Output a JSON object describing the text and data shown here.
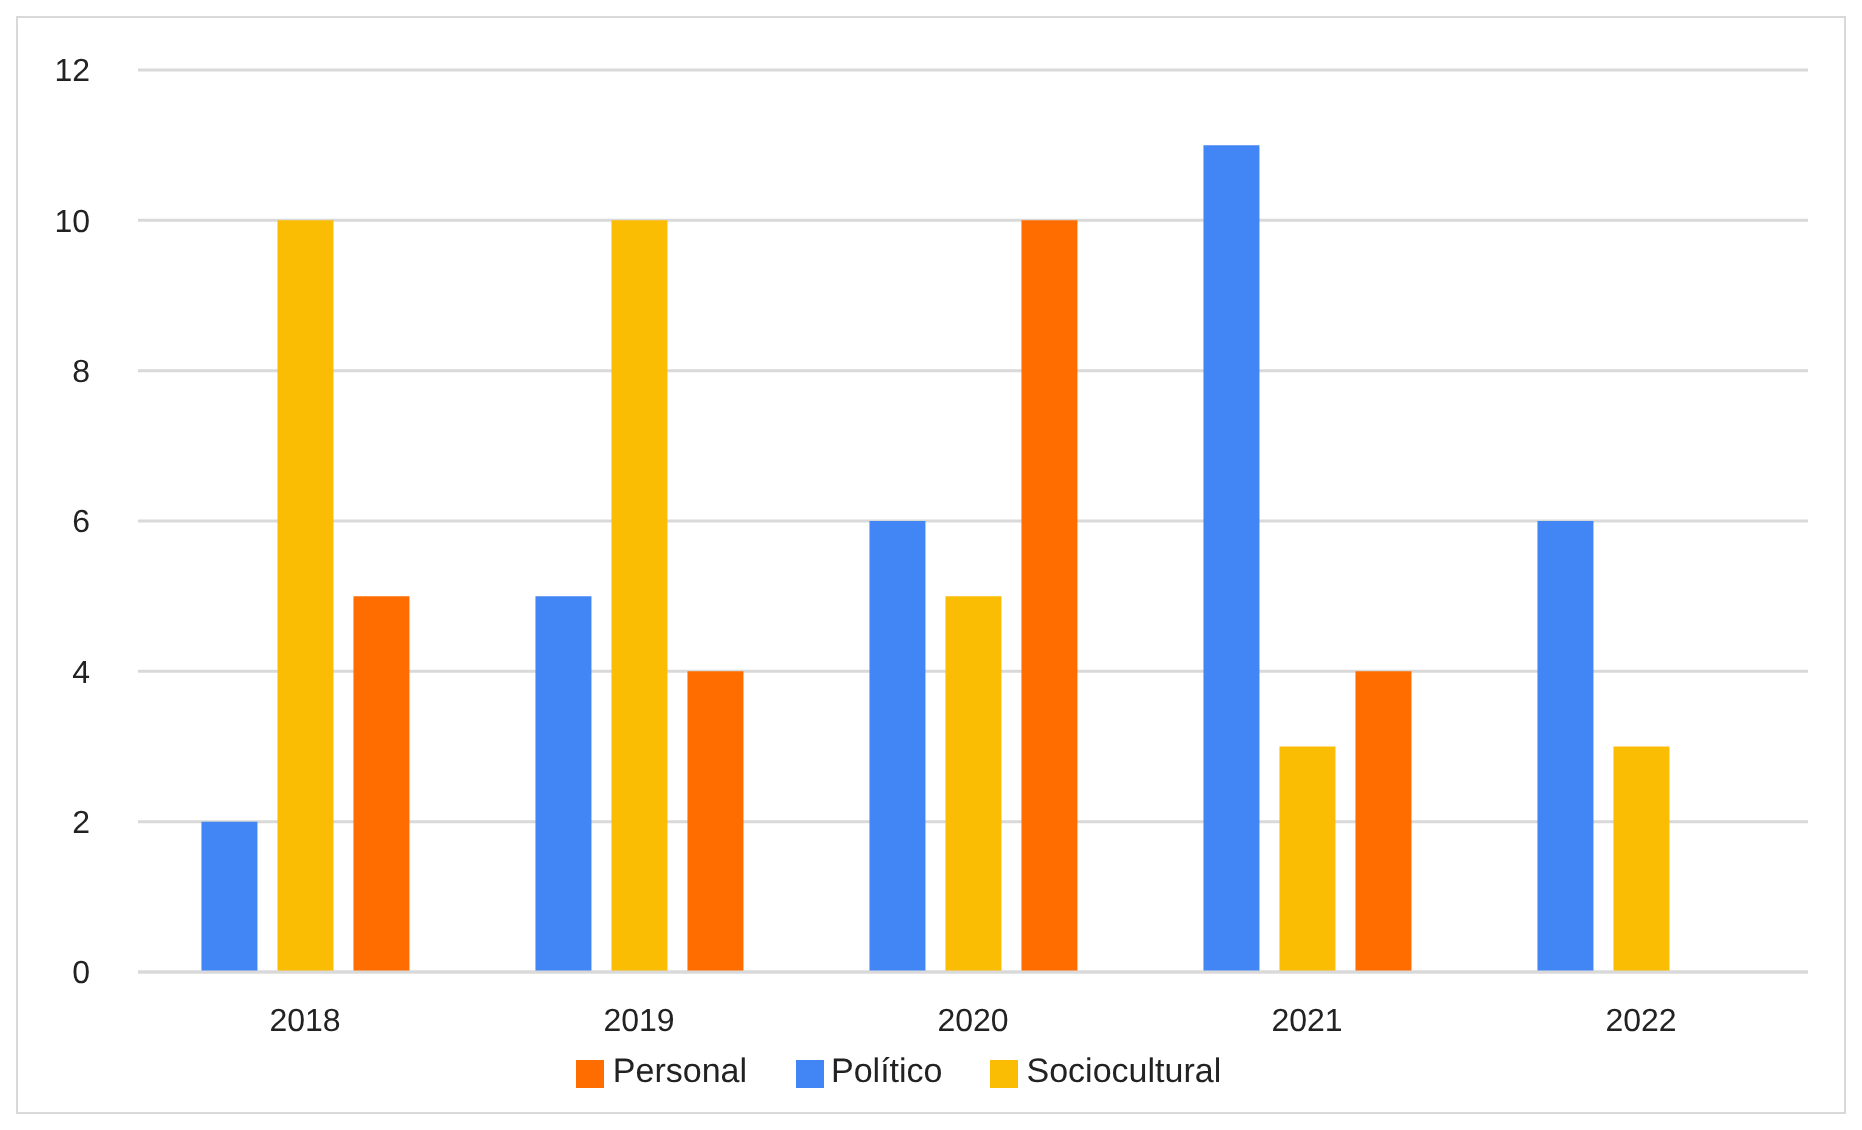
{
  "chart_data": {
    "type": "bar",
    "categories": [
      "2018",
      "2019",
      "2020",
      "2021",
      "2022"
    ],
    "series": [
      {
        "name": "Político",
        "color": "#4285f4",
        "values": [
          2,
          5,
          6,
          11,
          6
        ]
      },
      {
        "name": "Sociocultural",
        "color": "#fbbc04",
        "values": [
          10,
          10,
          5,
          3,
          3
        ]
      },
      {
        "name": "Personal",
        "color": "#ff6d01",
        "values": [
          5,
          4,
          10,
          4,
          0
        ]
      }
    ],
    "ylim": [
      0,
      12
    ],
    "yticks": [
      0,
      2,
      4,
      6,
      8,
      10,
      12
    ],
    "grid": "y",
    "legend": "bottom"
  }
}
